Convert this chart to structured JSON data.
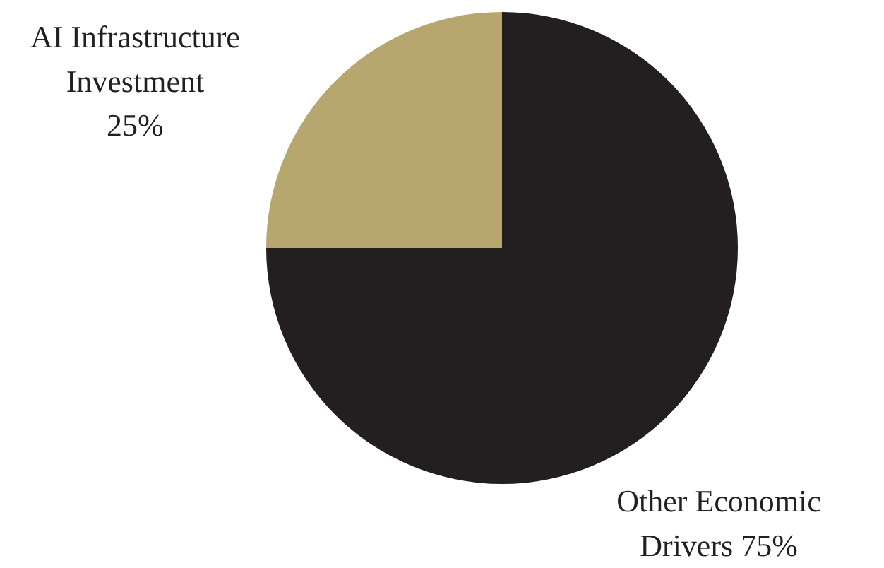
{
  "chart_data": {
    "type": "pie",
    "categories": [
      "AI Infrastructure Investment",
      "Other Economic Drivers"
    ],
    "values": [
      25,
      75
    ],
    "value_labels": [
      "25%",
      "75%"
    ],
    "colors": [
      "#b8a66f",
      "#231f20"
    ]
  }
}
